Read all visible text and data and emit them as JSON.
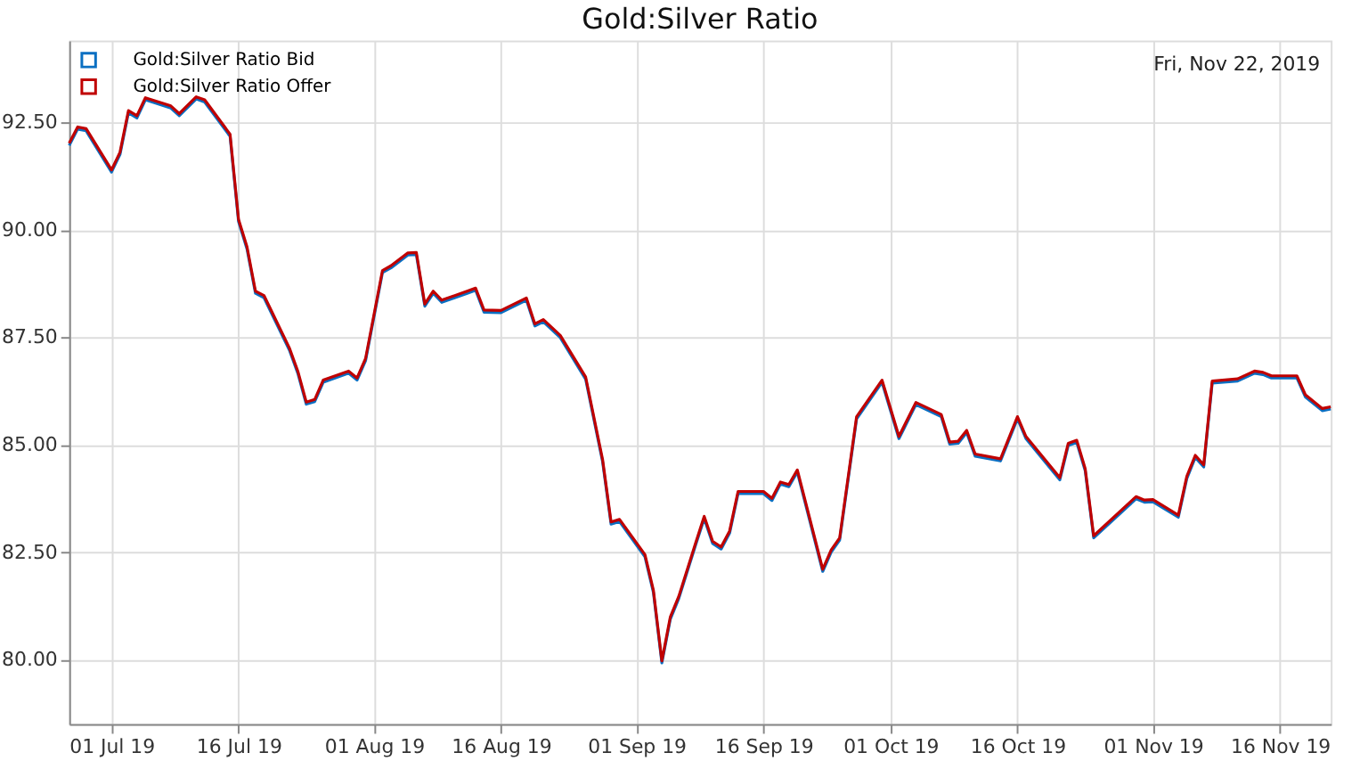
{
  "chart_data": {
    "type": "line",
    "title": "Gold:Silver Ratio",
    "annotations": [
      "Fri, Nov 22, 2019"
    ],
    "x": [
      "2019-06-26",
      "2019-06-27",
      "2019-06-28",
      "2019-07-01",
      "2019-07-02",
      "2019-07-03",
      "2019-07-04",
      "2019-07-05",
      "2019-07-08",
      "2019-07-09",
      "2019-07-11",
      "2019-07-12",
      "2019-07-15",
      "2019-07-16",
      "2019-07-17",
      "2019-07-18",
      "2019-07-19",
      "2019-07-22",
      "2019-07-23",
      "2019-07-24",
      "2019-07-25",
      "2019-07-26",
      "2019-07-29",
      "2019-07-30",
      "2019-07-31",
      "2019-08-02",
      "2019-08-03",
      "2019-08-05",
      "2019-08-06",
      "2019-08-07",
      "2019-08-08",
      "2019-08-09",
      "2019-08-12",
      "2019-08-13",
      "2019-08-14",
      "2019-08-16",
      "2019-08-19",
      "2019-08-20",
      "2019-08-21",
      "2019-08-23",
      "2019-08-26",
      "2019-08-28",
      "2019-08-29",
      "2019-08-30",
      "2019-09-02",
      "2019-09-03",
      "2019-09-04",
      "2019-09-05",
      "2019-09-06",
      "2019-09-08",
      "2019-09-09",
      "2019-09-10",
      "2019-09-11",
      "2019-09-12",
      "2019-09-13",
      "2019-09-16",
      "2019-09-17",
      "2019-09-18",
      "2019-09-19",
      "2019-09-20",
      "2019-09-23",
      "2019-09-24",
      "2019-09-25",
      "2019-09-27",
      "2019-09-30",
      "2019-10-02",
      "2019-10-04",
      "2019-10-07",
      "2019-10-08",
      "2019-10-09",
      "2019-10-10",
      "2019-10-11",
      "2019-10-14",
      "2019-10-16",
      "2019-10-17",
      "2019-10-21",
      "2019-10-22",
      "2019-10-23",
      "2019-10-24",
      "2019-10-25",
      "2019-10-30",
      "2019-10-31",
      "2019-11-01",
      "2019-11-04",
      "2019-11-05",
      "2019-11-06",
      "2019-11-07",
      "2019-11-08",
      "2019-11-11",
      "2019-11-13",
      "2019-11-14",
      "2019-11-15",
      "2019-11-18",
      "2019-11-19",
      "2019-11-21",
      "2019-11-22"
    ],
    "series": [
      {
        "name": "Gold:Silver Ratio Bid",
        "color": "#0a6fc2",
        "values": [
          91.96,
          92.34,
          92.3,
          91.34,
          91.75,
          92.72,
          92.6,
          93.02,
          92.83,
          92.65,
          93.04,
          92.97,
          92.17,
          90.19,
          89.55,
          88.52,
          88.42,
          87.2,
          86.66,
          85.94,
          86.0,
          86.45,
          86.66,
          86.5,
          86.95,
          89.0,
          89.11,
          89.41,
          89.42,
          88.22,
          88.52,
          88.31,
          88.52,
          88.59,
          88.08,
          88.07,
          88.36,
          87.76,
          87.86,
          87.49,
          86.52,
          84.6,
          83.15,
          83.21,
          82.39,
          81.56,
          79.92,
          80.94,
          81.42,
          82.67,
          83.28,
          82.7,
          82.57,
          82.94,
          83.86,
          83.86,
          83.7,
          84.08,
          84.02,
          84.36,
          82.05,
          82.5,
          82.78,
          85.6,
          86.45,
          85.14,
          85.93,
          85.65,
          85.01,
          85.03,
          85.28,
          84.73,
          84.62,
          85.6,
          85.14,
          84.18,
          84.98,
          85.05,
          84.39,
          82.83,
          83.74,
          83.66,
          83.67,
          83.31,
          84.21,
          84.7,
          84.48,
          86.43,
          86.48,
          86.66,
          86.63,
          86.55,
          86.55,
          86.11,
          85.79,
          85.83
        ]
      },
      {
        "name": "Gold:Silver Ratio Offer",
        "color": "#c00000",
        "values": [
          92.01,
          92.39,
          92.35,
          91.39,
          91.8,
          92.77,
          92.65,
          93.07,
          92.88,
          92.7,
          93.09,
          93.02,
          92.22,
          90.24,
          89.6,
          88.57,
          88.47,
          87.25,
          86.71,
          85.99,
          86.05,
          86.5,
          86.71,
          86.55,
          87.0,
          89.05,
          89.16,
          89.46,
          89.47,
          88.27,
          88.57,
          88.36,
          88.57,
          88.64,
          88.13,
          88.12,
          88.41,
          87.81,
          87.91,
          87.54,
          86.57,
          84.65,
          83.2,
          83.26,
          82.44,
          81.61,
          79.97,
          80.99,
          81.47,
          82.72,
          83.33,
          82.75,
          82.62,
          82.99,
          83.91,
          83.91,
          83.75,
          84.13,
          84.07,
          84.41,
          82.1,
          82.55,
          82.83,
          85.65,
          86.5,
          85.19,
          85.98,
          85.7,
          85.06,
          85.08,
          85.33,
          84.78,
          84.67,
          85.65,
          85.19,
          84.23,
          85.03,
          85.1,
          84.44,
          82.88,
          83.79,
          83.71,
          83.72,
          83.36,
          84.26,
          84.75,
          84.53,
          86.48,
          86.53,
          86.71,
          86.68,
          86.6,
          86.6,
          86.16,
          85.84,
          85.88
        ]
      }
    ],
    "xlim": [
      "2019-06-26",
      "2019-11-22"
    ],
    "xticks": [
      {
        "value": "2019-07-01",
        "label": "01 Jul 19"
      },
      {
        "value": "2019-07-16",
        "label": "16 Jul 19"
      },
      {
        "value": "2019-08-01",
        "label": "01 Aug 19"
      },
      {
        "value": "2019-08-16",
        "label": "16 Aug 19"
      },
      {
        "value": "2019-09-01",
        "label": "01 Sep 19"
      },
      {
        "value": "2019-09-16",
        "label": "16 Sep 19"
      },
      {
        "value": "2019-10-01",
        "label": "01 Oct 19"
      },
      {
        "value": "2019-10-16",
        "label": "16 Oct 19"
      },
      {
        "value": "2019-11-01",
        "label": "01 Nov 19"
      },
      {
        "value": "2019-11-16",
        "label": "16 Nov 19"
      }
    ],
    "ylim": [
      78.5,
      94.4
    ],
    "yticks": [
      {
        "value": 80,
        "label": "80.00"
      },
      {
        "value": 82.5,
        "label": "82.50"
      },
      {
        "value": 85,
        "label": "85.00"
      },
      {
        "value": 87.5,
        "label": "87.50"
      },
      {
        "value": 90,
        "label": "90.00"
      },
      {
        "value": 92.5,
        "label": "92.50"
      }
    ],
    "grid": true,
    "legend": "top left",
    "marker": "none",
    "line_style": "solid"
  }
}
